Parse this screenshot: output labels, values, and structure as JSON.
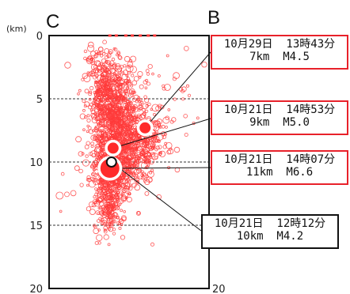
{
  "chart_data": {
    "type": "scatter",
    "title": "",
    "xlabel": "",
    "ylabel": "(km)",
    "corner_labels": {
      "left": "C",
      "right": "B"
    },
    "y_axis": {
      "unit": "(km)",
      "ylim": [
        0,
        20
      ],
      "ticks": [
        0,
        5,
        10,
        15,
        20
      ],
      "inverted": true,
      "gridlines_dashed": [
        5,
        10,
        15
      ]
    },
    "x_axis": {
      "ticks_shown": [],
      "ticks_right": [
        20
      ]
    },
    "aftershock_cloud_color": "#ff3b3b",
    "labeled_events": [
      {
        "date": "10月29日",
        "time": "13時43分",
        "depth_label": "7km",
        "magnitude": "M4.5",
        "depth": 7.3,
        "x_rel": 0.6,
        "size": "medium",
        "fill": "#ff2b2b",
        "box_color": "#e8212a"
      },
      {
        "date": "10月21日",
        "time": "14時53分",
        "depth_label": "9km",
        "magnitude": "M5.0",
        "depth": 8.9,
        "x_rel": 0.4,
        "size": "medium",
        "fill": "#ff2b2b",
        "box_color": "#e8212a"
      },
      {
        "date": "10月21日",
        "time": "14時07分",
        "depth_label": "11km",
        "magnitude": "M6.6",
        "depth": 10.5,
        "x_rel": 0.38,
        "size": "large",
        "fill": "#ff2b2b",
        "box_color": "#e8212a"
      },
      {
        "date": "10月21日",
        "time": "12時12分",
        "depth_label": "10km",
        "magnitude": "M4.2",
        "depth": 10.0,
        "x_rel": 0.39,
        "size": "small",
        "fill": "#ffffff",
        "box_color": "#111111"
      }
    ]
  }
}
